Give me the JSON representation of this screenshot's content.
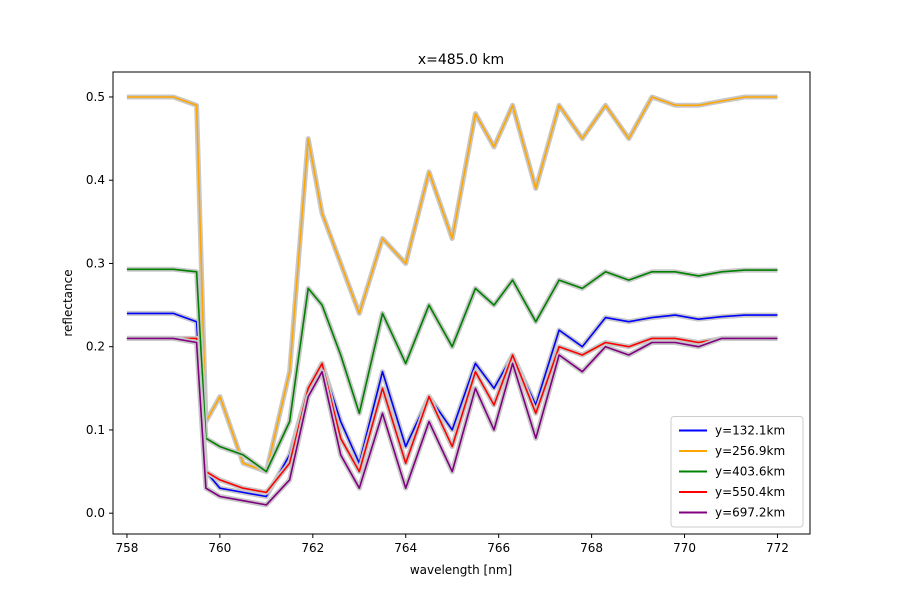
{
  "chart_data": {
    "type": "line",
    "title": "x=485.0 km",
    "xlabel": "wavelength [nm]",
    "ylabel": "reflectance",
    "xlim": [
      757.7,
      772.7
    ],
    "ylim": [
      -0.025,
      0.53
    ],
    "xticks": [
      758,
      760,
      762,
      764,
      766,
      768,
      770,
      772
    ],
    "xtick_labels": [
      "758",
      "760",
      "762",
      "764",
      "766",
      "768",
      "770",
      "772"
    ],
    "yticks": [
      0.0,
      0.1,
      0.2,
      0.3,
      0.4,
      0.5
    ],
    "ytick_labels": [
      "0.0",
      "0.1",
      "0.2",
      "0.3",
      "0.4",
      "0.5"
    ],
    "grid": false,
    "legend_position": "lower-right",
    "x": [
      758.0,
      759.0,
      759.5,
      759.7,
      760.0,
      760.5,
      761.0,
      761.5,
      761.9,
      762.2,
      762.6,
      763.0,
      763.5,
      764.0,
      764.5,
      765.0,
      765.5,
      765.9,
      766.3,
      766.8,
      767.3,
      767.8,
      768.3,
      768.8,
      769.3,
      769.8,
      770.3,
      770.8,
      771.3,
      772.0
    ],
    "series": [
      {
        "name": "y=132.1km",
        "color": "#0000ff",
        "values": [
          0.24,
          0.24,
          0.23,
          0.05,
          0.03,
          0.025,
          0.02,
          0.07,
          0.15,
          0.18,
          0.11,
          0.06,
          0.17,
          0.08,
          0.14,
          0.1,
          0.18,
          0.15,
          0.19,
          0.13,
          0.22,
          0.2,
          0.235,
          0.23,
          0.235,
          0.238,
          0.233,
          0.236,
          0.238,
          0.238
        ]
      },
      {
        "name": "y=256.9km",
        "color": "#ffa500",
        "values": [
          0.5,
          0.5,
          0.49,
          0.11,
          0.14,
          0.06,
          0.05,
          0.17,
          0.45,
          0.36,
          0.3,
          0.24,
          0.33,
          0.3,
          0.41,
          0.33,
          0.48,
          0.44,
          0.49,
          0.39,
          0.49,
          0.45,
          0.49,
          0.45,
          0.5,
          0.49,
          0.49,
          0.495,
          0.5,
          0.5
        ]
      },
      {
        "name": "y=403.6km",
        "color": "#008000",
        "values": [
          0.293,
          0.293,
          0.29,
          0.09,
          0.08,
          0.07,
          0.05,
          0.11,
          0.27,
          0.25,
          0.19,
          0.12,
          0.24,
          0.18,
          0.25,
          0.2,
          0.27,
          0.25,
          0.28,
          0.23,
          0.28,
          0.27,
          0.29,
          0.28,
          0.29,
          0.29,
          0.285,
          0.29,
          0.292,
          0.292
        ]
      },
      {
        "name": "y=550.4km",
        "color": "#ff0000",
        "values": [
          0.21,
          0.21,
          0.21,
          0.05,
          0.04,
          0.03,
          0.025,
          0.06,
          0.15,
          0.18,
          0.09,
          0.05,
          0.15,
          0.06,
          0.14,
          0.08,
          0.17,
          0.13,
          0.19,
          0.12,
          0.2,
          0.19,
          0.205,
          0.2,
          0.21,
          0.21,
          0.205,
          0.21,
          0.21,
          0.21
        ]
      },
      {
        "name": "y=697.2km",
        "color": "#800080",
        "values": [
          0.21,
          0.21,
          0.205,
          0.03,
          0.02,
          0.015,
          0.01,
          0.04,
          0.14,
          0.17,
          0.07,
          0.03,
          0.12,
          0.03,
          0.11,
          0.05,
          0.15,
          0.1,
          0.18,
          0.09,
          0.19,
          0.17,
          0.2,
          0.19,
          0.205,
          0.205,
          0.2,
          0.21,
          0.21,
          0.21
        ]
      }
    ]
  }
}
